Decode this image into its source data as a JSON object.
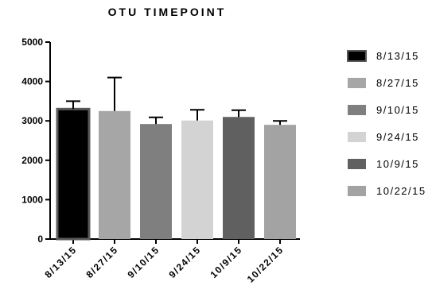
{
  "chart_data": {
    "type": "bar",
    "title": "OTU TIMEPOINT",
    "xlabel": "",
    "ylabel": "",
    "categories": [
      "8/13/15",
      "8/27/15",
      "9/10/15",
      "9/24/15",
      "10/9/15",
      "10/22/15"
    ],
    "values": [
      3300,
      3250,
      2920,
      3010,
      3100,
      2900
    ],
    "error_upper": [
      200,
      850,
      170,
      270,
      170,
      100
    ],
    "ylim": [
      0,
      5000
    ],
    "yticks": [
      0,
      1000,
      2000,
      3000,
      4000,
      5000
    ],
    "ytick_labels": [
      "0",
      "1000",
      "2000",
      "3000",
      "4000",
      "5000"
    ],
    "colors": [
      "#000000",
      "#a6a6a6",
      "#7f7f7f",
      "#d3d3d3",
      "#606060",
      "#a3a3a3"
    ],
    "legend": {
      "position": "right",
      "entries": [
        "8/13/15",
        "8/27/15",
        "9/10/15",
        "9/24/15",
        "10/9/15",
        "10/22/15"
      ]
    },
    "grid": false
  }
}
